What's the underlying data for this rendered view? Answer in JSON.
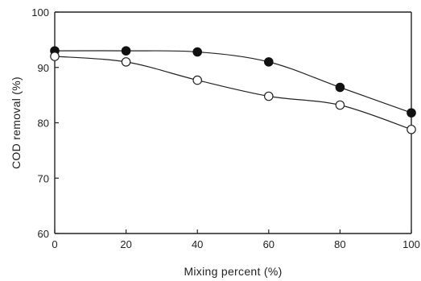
{
  "chart_data": {
    "type": "line",
    "xlabel": "Mixing percent (%)",
    "ylabel": "COD removal (%)",
    "xlim": [
      0,
      100
    ],
    "ylim": [
      60,
      100
    ],
    "x_ticks": [
      0,
      20,
      40,
      60,
      80,
      100
    ],
    "y_ticks": [
      60,
      70,
      80,
      90,
      100
    ],
    "grid": false,
    "series": [
      {
        "marker": "filled-circle",
        "x": [
          0,
          20,
          40,
          60,
          80,
          100
        ],
        "y": [
          93.0,
          93.0,
          92.8,
          91.0,
          86.4,
          81.8
        ]
      },
      {
        "marker": "open-circle",
        "x": [
          0,
          20,
          40,
          60,
          80,
          100
        ],
        "y": [
          92.0,
          91.0,
          87.7,
          84.8,
          83.2,
          78.8
        ]
      }
    ]
  }
}
